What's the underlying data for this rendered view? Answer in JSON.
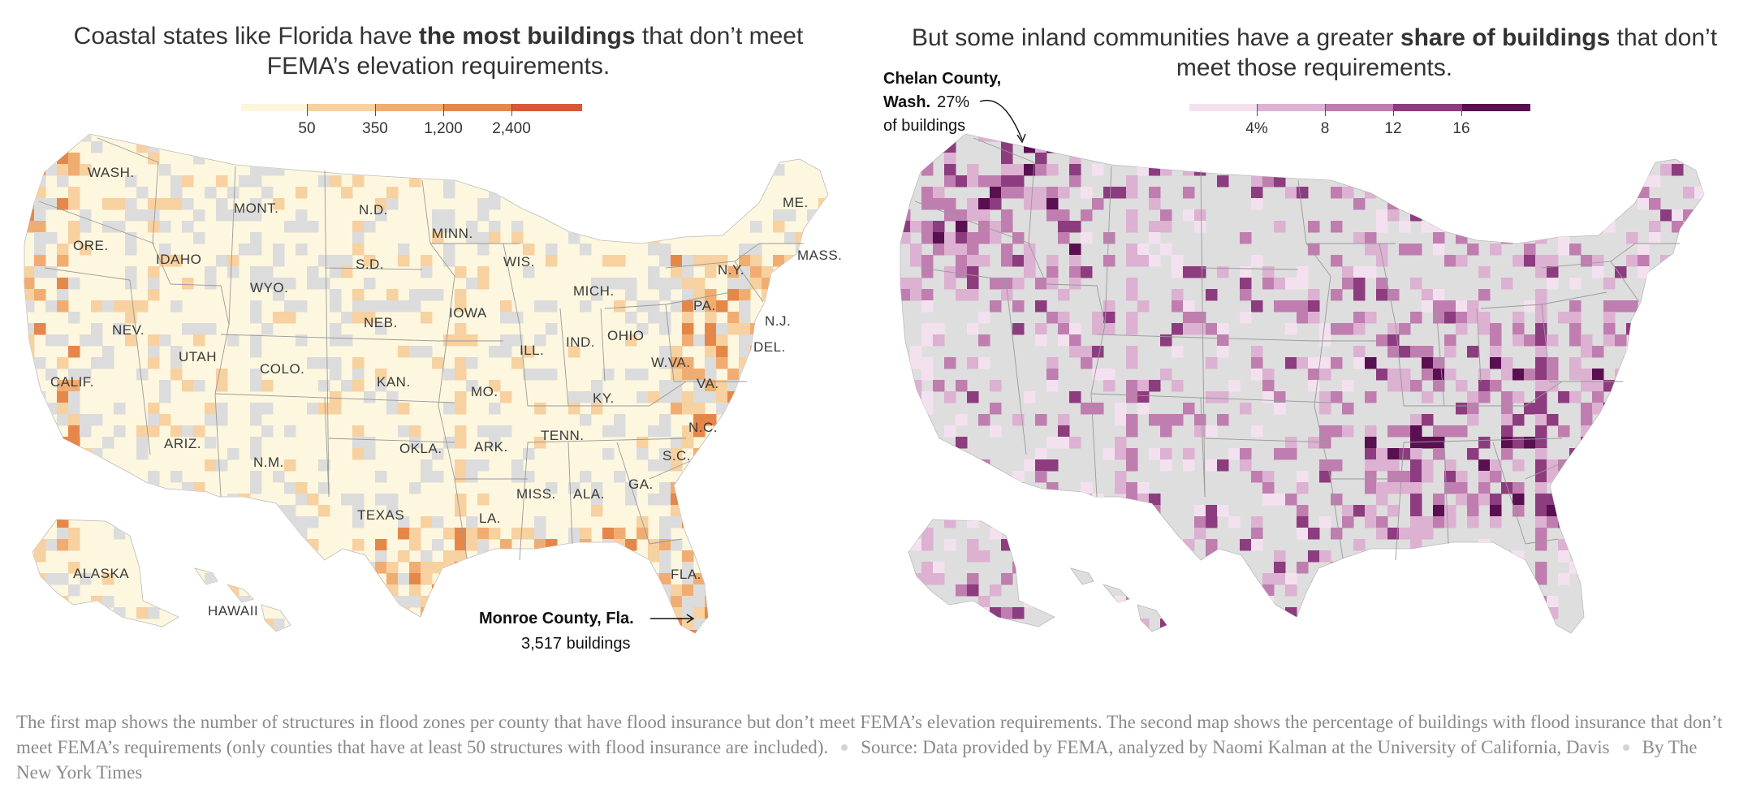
{
  "left_panel": {
    "headline_pre": "Coastal states like Florida have ",
    "headline_bold": "the most buildings",
    "headline_post": " that don’t meet FEMA’s elevation requirements.",
    "legend": {
      "labels": [
        "50",
        "350",
        "1,200",
        "2,400"
      ],
      "colors": [
        "#fdf6dc",
        "#f7d1a0",
        "#f1ad71",
        "#e6874a",
        "#d65a34"
      ]
    },
    "state_labels": {
      "wa": "WASH.",
      "or": "ORE.",
      "ca": "CALIF.",
      "id": "IDAHO",
      "nv": "NEV.",
      "mt": "MONT.",
      "wy": "WYO.",
      "ut": "UTAH",
      "az": "ARIZ.",
      "co": "COLO.",
      "nm": "N.M.",
      "nd": "N.D.",
      "sd": "S.D.",
      "ne": "NEB.",
      "ks": "KAN.",
      "ok": "OKLA.",
      "tx": "TEXAS",
      "mn": "MINN.",
      "ia": "IOWA",
      "mo": "MO.",
      "ar": "ARK.",
      "la": "LA.",
      "wi": "WIS.",
      "il": "ILL.",
      "mi": "MICH.",
      "in": "IND.",
      "oh": "OHIO",
      "ky": "KY.",
      "tn": "TENN.",
      "ms": "MISS.",
      "al": "ALA.",
      "ga": "GA.",
      "fl": "FLA.",
      "sc": "S.C.",
      "nc": "N.C.",
      "va": "VA.",
      "wv": "W.VA.",
      "pa": "PA.",
      "ny": "N.Y.",
      "nj": "N.J.",
      "de": "DEL.",
      "ma": "MASS.",
      "me": "ME.",
      "ak": "ALASKA",
      "hi": "HAWAII"
    },
    "callout": {
      "place": "Monroe County, Fla.",
      "value": "3,517 buildings"
    }
  },
  "right_panel": {
    "headline_pre": "But some inland communities have a greater ",
    "headline_bold": "share of buildings",
    "headline_post": " that don’t meet those requirements.",
    "legend": {
      "labels": [
        "4%",
        "8",
        "12",
        "16"
      ],
      "colors": [
        "#f4e1ef",
        "#dcb1d2",
        "#bf7eaf",
        "#8d3c7f",
        "#5a0f51"
      ]
    },
    "callout": {
      "place_line1": "Chelan County,",
      "place_line2": "Wash.",
      "value": "27%",
      "value_line2": "of buildings"
    }
  },
  "caption": {
    "text": "The first map shows the number of structures in flood zones per county that have flood insurance but don’t meet FEMA’s elevation requirements. The second map shows the percentage of buildings with flood insurance that don’t meet FEMA’s requirements (only counties that have at least 50 structures with flood insurance are included).",
    "source": "Source: Data provided by FEMA, analyzed by Naomi Kalman at the University of California, Davis",
    "byline": "By The New York Times"
  },
  "colors": {
    "no_data": "#dcdcdc",
    "state_border": "#9a9a9a"
  }
}
